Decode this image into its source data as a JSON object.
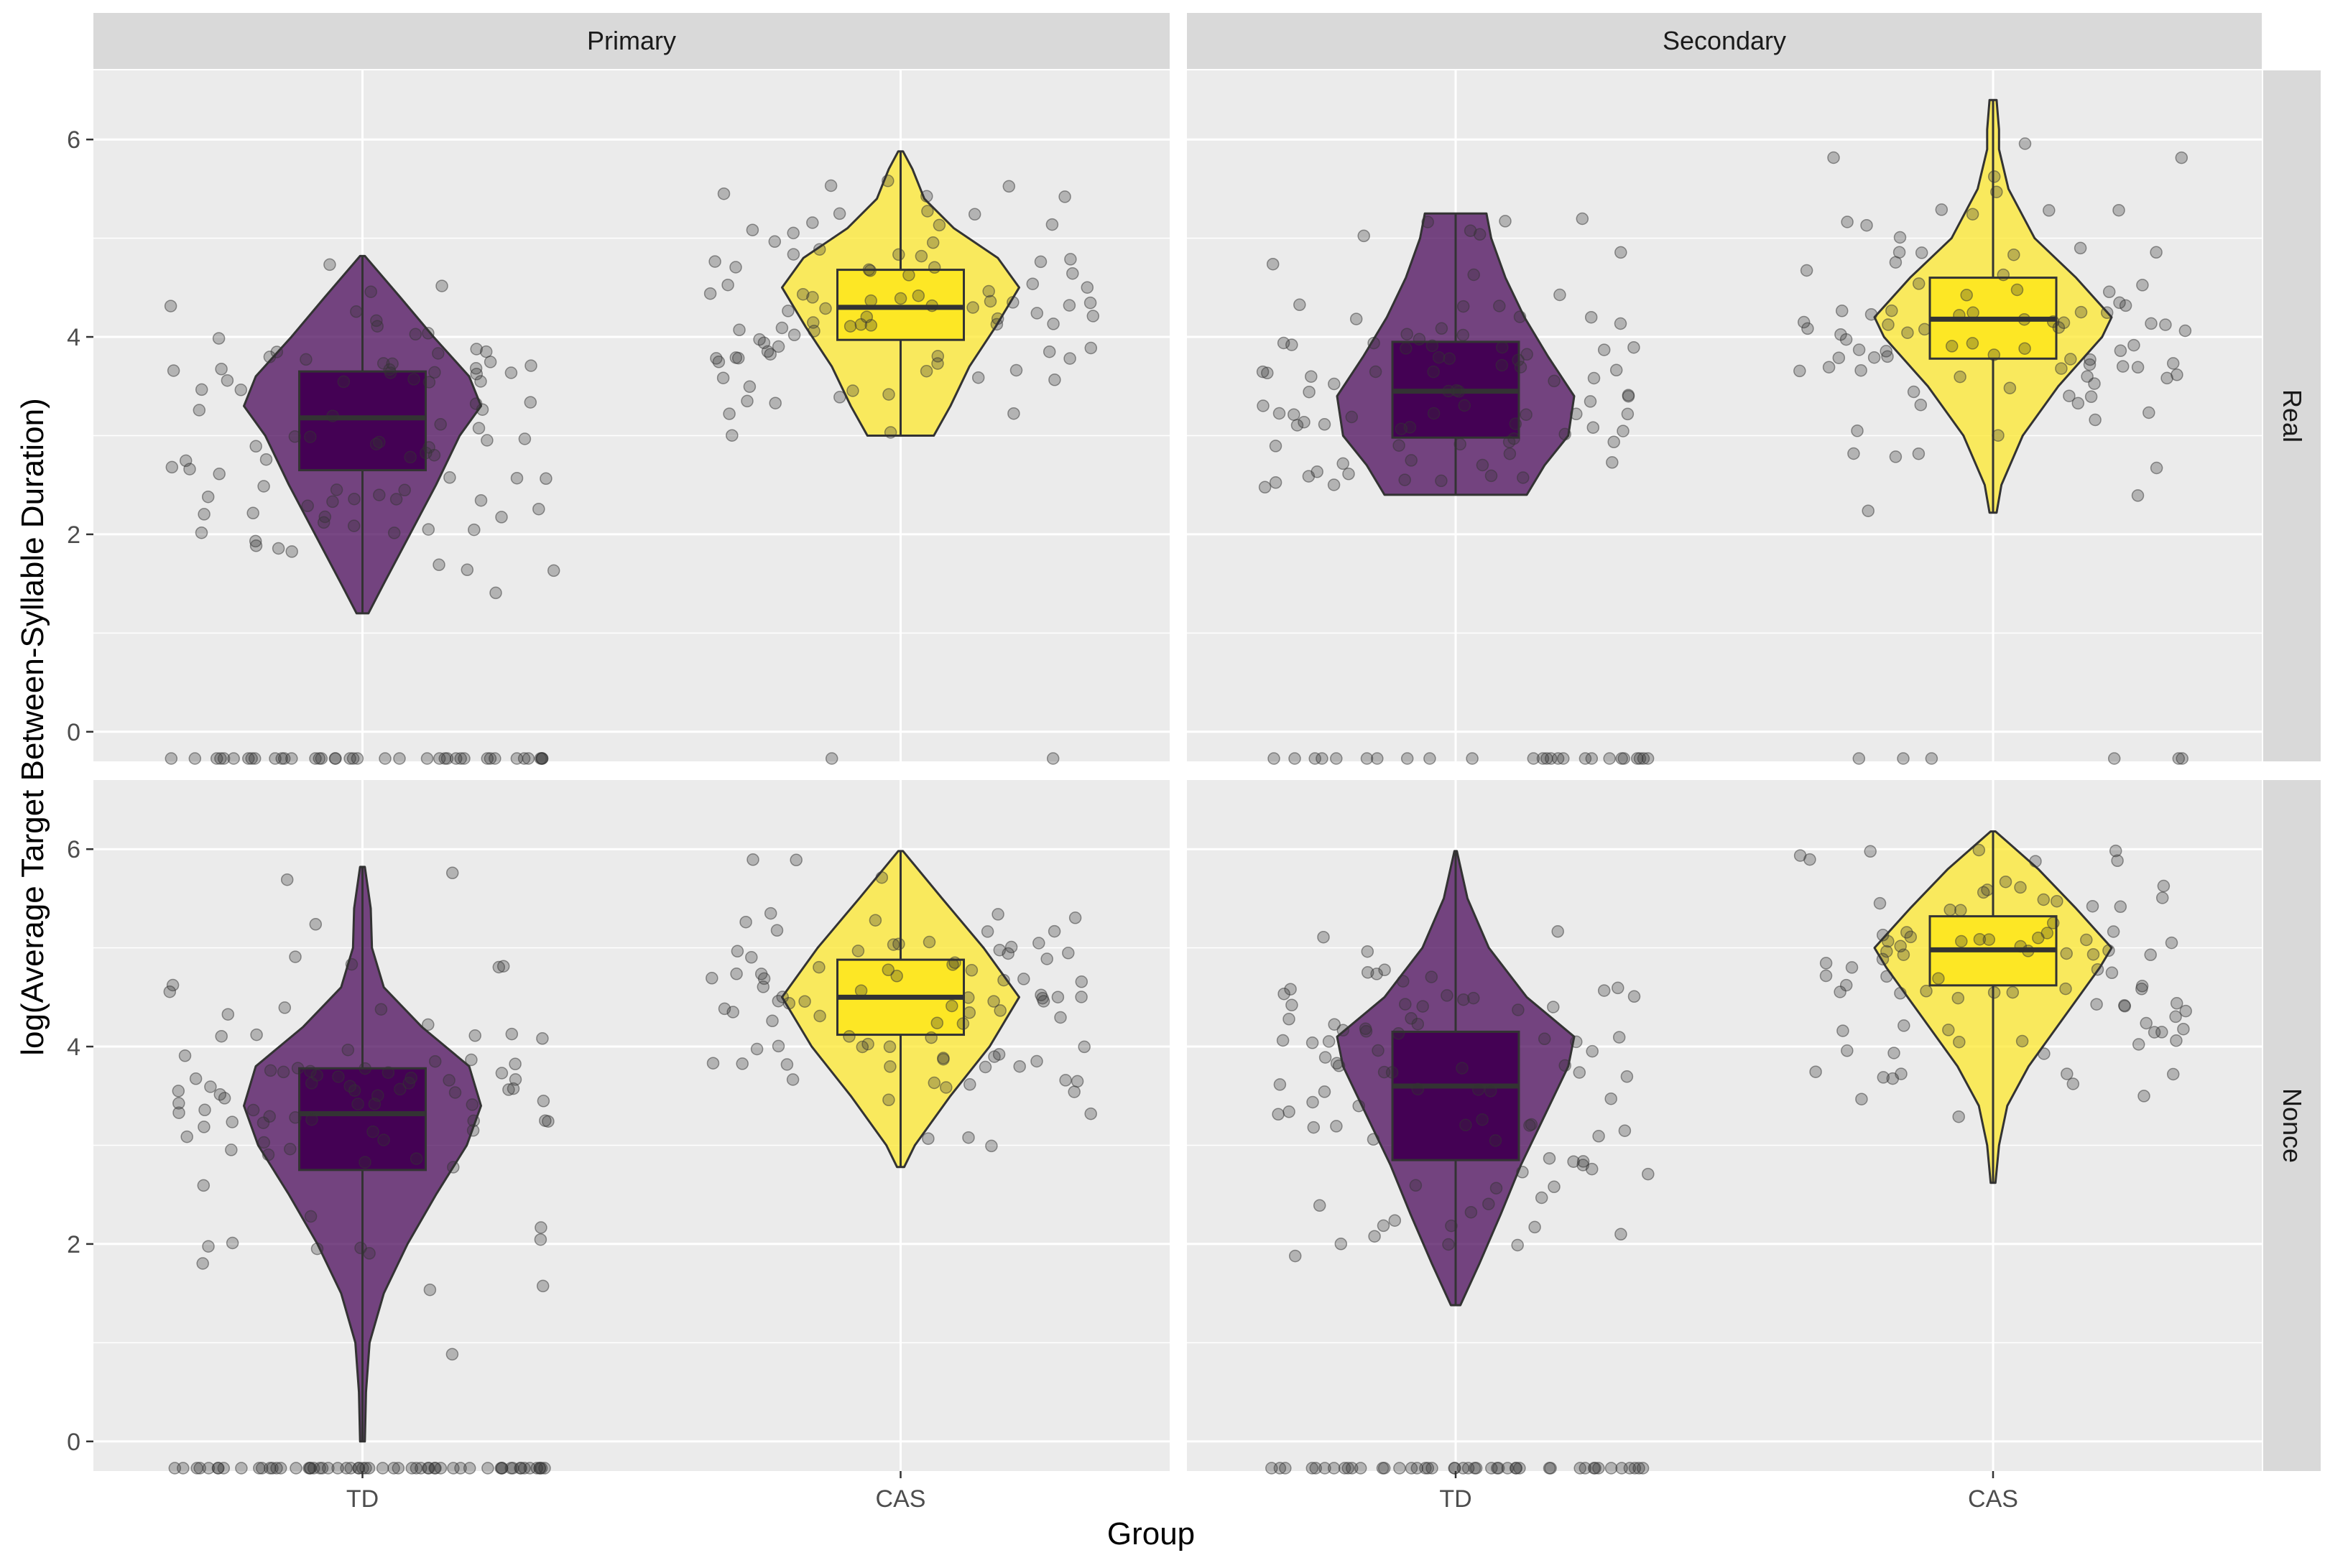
{
  "chart_data": {
    "type": "violin",
    "title": "",
    "xlabel": "Group",
    "ylabel": "log(Average Target Between-Syllable Duration)",
    "ylim": [
      -0.3,
      6.7
    ],
    "y_ticks": [
      0,
      2,
      4,
      6
    ],
    "categories": [
      "TD",
      "CAS"
    ],
    "facet_columns": [
      "Primary",
      "Secondary"
    ],
    "facet_rows": [
      "Real",
      "Nonce"
    ],
    "colors": {
      "TD": "#440154",
      "CAS": "#FDE725",
      "panel_bg": "#EBEBEB",
      "strip_bg": "#D9D9D9",
      "grid": "#FFFFFF",
      "outline": "#333333",
      "point": "#333333"
    },
    "panels": [
      {
        "column": "Primary",
        "row": "Real",
        "groups": [
          {
            "group": "TD",
            "min": 1.2,
            "q1": 2.65,
            "median": 3.18,
            "q3": 3.65,
            "max": 4.82,
            "n_zero": 40,
            "density": [
              [
                1.2,
                0.05
              ],
              [
                1.5,
                0.18
              ],
              [
                2.0,
                0.4
              ],
              [
                2.5,
                0.62
              ],
              [
                3.0,
                0.82
              ],
              [
                3.3,
                1.0
              ],
              [
                3.6,
                0.9
              ],
              [
                4.0,
                0.6
              ],
              [
                4.4,
                0.32
              ],
              [
                4.82,
                0.02
              ]
            ]
          },
          {
            "group": "CAS",
            "min": 3.0,
            "q1": 3.97,
            "median": 4.3,
            "q3": 4.68,
            "max": 5.88,
            "n_zero": 2,
            "density": [
              [
                3.0,
                0.28
              ],
              [
                3.3,
                0.42
              ],
              [
                3.7,
                0.58
              ],
              [
                4.1,
                0.8
              ],
              [
                4.5,
                1.0
              ],
              [
                4.8,
                0.82
              ],
              [
                5.1,
                0.45
              ],
              [
                5.4,
                0.2
              ],
              [
                5.7,
                0.1
              ],
              [
                5.88,
                0.02
              ]
            ]
          }
        ]
      },
      {
        "column": "Secondary",
        "row": "Real",
        "groups": [
          {
            "group": "TD",
            "min": 2.4,
            "q1": 2.98,
            "median": 3.45,
            "q3": 3.95,
            "max": 5.25,
            "n_zero": 25,
            "density": [
              [
                2.4,
                0.6
              ],
              [
                2.7,
                0.75
              ],
              [
                3.0,
                0.95
              ],
              [
                3.4,
                1.0
              ],
              [
                3.8,
                0.78
              ],
              [
                4.2,
                0.58
              ],
              [
                4.6,
                0.42
              ],
              [
                5.0,
                0.3
              ],
              [
                5.25,
                0.26
              ]
            ]
          },
          {
            "group": "CAS",
            "min": 2.22,
            "q1": 3.78,
            "median": 4.18,
            "q3": 4.6,
            "max": 6.4,
            "n_zero": 6,
            "density": [
              [
                2.22,
                0.03
              ],
              [
                2.5,
                0.07
              ],
              [
                3.0,
                0.25
              ],
              [
                3.5,
                0.55
              ],
              [
                4.0,
                0.92
              ],
              [
                4.2,
                1.0
              ],
              [
                4.6,
                0.7
              ],
              [
                5.0,
                0.35
              ],
              [
                5.5,
                0.13
              ],
              [
                5.9,
                0.05
              ],
              [
                6.1,
                0.05
              ],
              [
                6.4,
                0.03
              ]
            ]
          }
        ]
      },
      {
        "column": "Primary",
        "row": "Nonce",
        "groups": [
          {
            "group": "TD",
            "min": 0.0,
            "q1": 2.75,
            "median": 3.32,
            "q3": 3.78,
            "max": 5.82,
            "n_zero": 60,
            "density": [
              [
                0.0,
                0.02
              ],
              [
                0.5,
                0.03
              ],
              [
                1.0,
                0.06
              ],
              [
                1.5,
                0.18
              ],
              [
                2.0,
                0.38
              ],
              [
                2.5,
                0.62
              ],
              [
                3.0,
                0.88
              ],
              [
                3.4,
                1.0
              ],
              [
                3.8,
                0.9
              ],
              [
                4.2,
                0.5
              ],
              [
                4.6,
                0.18
              ],
              [
                5.0,
                0.08
              ],
              [
                5.4,
                0.07
              ],
              [
                5.82,
                0.02
              ]
            ]
          },
          {
            "group": "CAS",
            "min": 2.78,
            "q1": 4.12,
            "median": 4.5,
            "q3": 4.88,
            "max": 5.98,
            "n_zero": 0,
            "density": [
              [
                2.78,
                0.03
              ],
              [
                3.0,
                0.12
              ],
              [
                3.5,
                0.42
              ],
              [
                4.0,
                0.75
              ],
              [
                4.5,
                1.0
              ],
              [
                5.0,
                0.7
              ],
              [
                5.5,
                0.35
              ],
              [
                5.98,
                0.02
              ]
            ]
          }
        ]
      },
      {
        "column": "Secondary",
        "row": "Nonce",
        "groups": [
          {
            "group": "TD",
            "min": 1.38,
            "q1": 2.85,
            "median": 3.6,
            "q3": 4.15,
            "max": 5.98,
            "n_zero": 45,
            "density": [
              [
                1.38,
                0.04
              ],
              [
                1.8,
                0.2
              ],
              [
                2.3,
                0.38
              ],
              [
                2.8,
                0.55
              ],
              [
                3.3,
                0.75
              ],
              [
                3.8,
                0.95
              ],
              [
                4.1,
                1.0
              ],
              [
                4.5,
                0.6
              ],
              [
                5.0,
                0.28
              ],
              [
                5.5,
                0.1
              ],
              [
                5.98,
                0.01
              ]
            ]
          },
          {
            "group": "CAS",
            "min": 2.62,
            "q1": 4.62,
            "median": 4.98,
            "q3": 5.32,
            "max": 6.18,
            "n_zero": 0,
            "density": [
              [
                2.62,
                0.02
              ],
              [
                3.0,
                0.05
              ],
              [
                3.4,
                0.12
              ],
              [
                3.8,
                0.3
              ],
              [
                4.3,
                0.6
              ],
              [
                4.8,
                0.9
              ],
              [
                5.0,
                1.0
              ],
              [
                5.4,
                0.7
              ],
              [
                5.8,
                0.38
              ],
              [
                6.18,
                0.02
              ]
            ]
          }
        ]
      }
    ]
  }
}
